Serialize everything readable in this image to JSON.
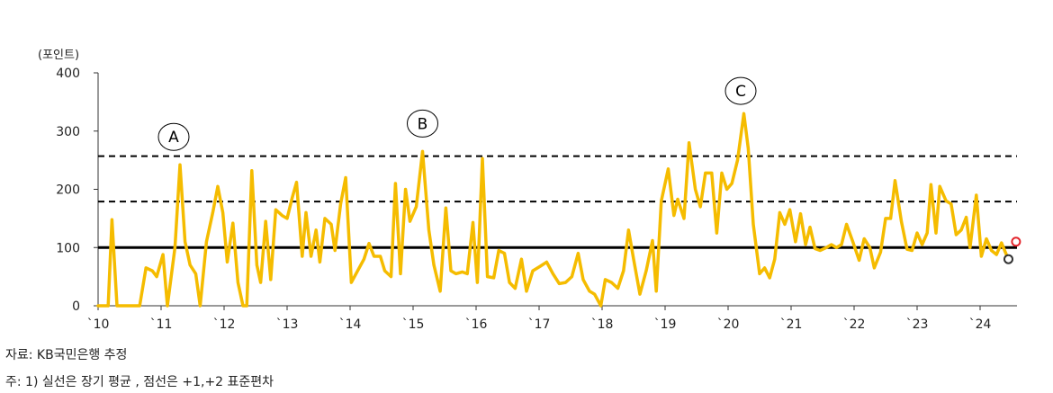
{
  "chart_data": {
    "type": "line",
    "unit": "(포인트)",
    "ylim": [
      0,
      400
    ],
    "yticks": [
      "0",
      "100",
      "200",
      "300",
      "400"
    ],
    "xlim": [
      2010.0,
      2024.3
    ],
    "xticks": [
      {
        "x": 2010,
        "label": "`10"
      },
      {
        "x": 2011,
        "label": "`11"
      },
      {
        "x": 2012,
        "label": "`12"
      },
      {
        "x": 2013,
        "label": "`13"
      },
      {
        "x": 2014,
        "label": "`14"
      },
      {
        "x": 2015,
        "label": "`15"
      },
      {
        "x": 2016,
        "label": "`16"
      },
      {
        "x": 2017,
        "label": "`17"
      },
      {
        "x": 2018,
        "label": "`18"
      },
      {
        "x": 2019,
        "label": "`19"
      },
      {
        "x": 2020,
        "label": "`20"
      },
      {
        "x": 2021,
        "label": "`21"
      },
      {
        "x": 2022,
        "label": "`22"
      },
      {
        "x": 2023,
        "label": "`23"
      },
      {
        "x": 2024,
        "label": "`24"
      }
    ],
    "grid": false,
    "series_color": "#F5BC00",
    "series": [
      {
        "values": [
          [
            2010.0,
            0
          ],
          [
            2010.08,
            0
          ],
          [
            2010.16,
            0
          ],
          [
            2010.22,
            148
          ],
          [
            2010.3,
            0
          ],
          [
            2010.4,
            0
          ],
          [
            2010.55,
            0
          ],
          [
            2010.66,
            0
          ],
          [
            2010.76,
            65
          ],
          [
            2010.86,
            60
          ],
          [
            2010.93,
            50
          ],
          [
            2011.03,
            88
          ],
          [
            2011.1,
            0
          ],
          [
            2011.22,
            100
          ],
          [
            2011.3,
            242
          ],
          [
            2011.38,
            110
          ],
          [
            2011.46,
            70
          ],
          [
            2011.55,
            55
          ],
          [
            2011.62,
            0
          ],
          [
            2011.72,
            110
          ],
          [
            2011.82,
            160
          ],
          [
            2011.9,
            205
          ],
          [
            2011.98,
            160
          ],
          [
            2012.05,
            75
          ],
          [
            2012.14,
            142
          ],
          [
            2012.22,
            40
          ],
          [
            2012.3,
            0
          ],
          [
            2012.36,
            0
          ],
          [
            2012.44,
            232
          ],
          [
            2012.52,
            70
          ],
          [
            2012.58,
            40
          ],
          [
            2012.66,
            145
          ],
          [
            2012.74,
            45
          ],
          [
            2012.82,
            165
          ],
          [
            2012.92,
            155
          ],
          [
            2013.0,
            150
          ],
          [
            2013.08,
            185
          ],
          [
            2013.15,
            212
          ],
          [
            2013.24,
            85
          ],
          [
            2013.3,
            160
          ],
          [
            2013.38,
            85
          ],
          [
            2013.46,
            130
          ],
          [
            2013.52,
            75
          ],
          [
            2013.6,
            150
          ],
          [
            2013.7,
            140
          ],
          [
            2013.76,
            95
          ],
          [
            2013.85,
            175
          ],
          [
            2013.93,
            220
          ],
          [
            2014.02,
            40
          ],
          [
            2014.12,
            60
          ],
          [
            2014.22,
            80
          ],
          [
            2014.3,
            107
          ],
          [
            2014.38,
            85
          ],
          [
            2014.48,
            85
          ],
          [
            2014.55,
            60
          ],
          [
            2014.65,
            50
          ],
          [
            2014.72,
            210
          ],
          [
            2014.8,
            55
          ],
          [
            2014.88,
            200
          ],
          [
            2014.95,
            145
          ],
          [
            2015.05,
            170
          ],
          [
            2015.15,
            265
          ],
          [
            2015.25,
            130
          ],
          [
            2015.33,
            70
          ],
          [
            2015.43,
            25
          ],
          [
            2015.52,
            168
          ],
          [
            2015.6,
            60
          ],
          [
            2015.68,
            55
          ],
          [
            2015.78,
            58
          ],
          [
            2015.86,
            55
          ],
          [
            2015.95,
            143
          ],
          [
            2016.02,
            40
          ],
          [
            2016.1,
            253
          ],
          [
            2016.18,
            50
          ],
          [
            2016.28,
            48
          ],
          [
            2016.36,
            95
          ],
          [
            2016.45,
            90
          ],
          [
            2016.53,
            40
          ],
          [
            2016.62,
            30
          ],
          [
            2016.72,
            80
          ],
          [
            2016.8,
            25
          ],
          [
            2016.9,
            60
          ],
          [
            2017.02,
            68
          ],
          [
            2017.12,
            75
          ],
          [
            2017.22,
            55
          ],
          [
            2017.32,
            38
          ],
          [
            2017.42,
            40
          ],
          [
            2017.52,
            50
          ],
          [
            2017.62,
            90
          ],
          [
            2017.7,
            45
          ],
          [
            2017.8,
            25
          ],
          [
            2017.88,
            20
          ],
          [
            2017.98,
            0
          ],
          [
            2018.05,
            45
          ],
          [
            2018.15,
            40
          ],
          [
            2018.25,
            30
          ],
          [
            2018.34,
            60
          ],
          [
            2018.42,
            130
          ],
          [
            2018.5,
            80
          ],
          [
            2018.6,
            20
          ],
          [
            2018.7,
            60
          ],
          [
            2018.8,
            112
          ],
          [
            2018.86,
            25
          ],
          [
            2018.94,
            180
          ],
          [
            2019.05,
            235
          ],
          [
            2019.14,
            155
          ],
          [
            2019.2,
            183
          ],
          [
            2019.3,
            150
          ],
          [
            2019.38,
            280
          ],
          [
            2019.48,
            200
          ],
          [
            2019.56,
            170
          ],
          [
            2019.64,
            228
          ],
          [
            2019.74,
            228
          ],
          [
            2019.82,
            125
          ],
          [
            2019.9,
            228
          ],
          [
            2019.98,
            200
          ],
          [
            2020.06,
            210
          ],
          [
            2020.15,
            250
          ],
          [
            2020.25,
            330
          ],
          [
            2020.32,
            270
          ],
          [
            2020.4,
            140
          ],
          [
            2020.5,
            55
          ],
          [
            2020.58,
            65
          ],
          [
            2020.66,
            48
          ],
          [
            2020.74,
            80
          ],
          [
            2020.82,
            160
          ],
          [
            2020.9,
            140
          ],
          [
            2020.98,
            165
          ],
          [
            2021.07,
            110
          ],
          [
            2021.15,
            158
          ],
          [
            2021.23,
            105
          ],
          [
            2021.3,
            135
          ],
          [
            2021.38,
            98
          ],
          [
            2021.46,
            95
          ],
          [
            2021.56,
            100
          ],
          [
            2021.64,
            105
          ],
          [
            2021.72,
            100
          ],
          [
            2021.8,
            105
          ],
          [
            2021.88,
            140
          ],
          [
            2021.98,
            110
          ],
          [
            2022.08,
            78
          ],
          [
            2022.16,
            115
          ],
          [
            2022.25,
            100
          ],
          [
            2022.32,
            65
          ],
          [
            2022.42,
            92
          ],
          [
            2022.5,
            150
          ],
          [
            2022.58,
            150
          ],
          [
            2022.65,
            215
          ],
          [
            2022.75,
            145
          ],
          [
            2022.84,
            97
          ],
          [
            2022.92,
            95
          ],
          [
            2023.0,
            125
          ],
          [
            2023.08,
            105
          ],
          [
            2023.16,
            125
          ],
          [
            2023.22,
            208
          ],
          [
            2023.3,
            125
          ],
          [
            2023.36,
            205
          ],
          [
            2023.46,
            180
          ],
          [
            2023.54,
            175
          ],
          [
            2023.62,
            122
          ],
          [
            2023.7,
            130
          ],
          [
            2023.78,
            152
          ],
          [
            2023.84,
            100
          ],
          [
            2023.94,
            190
          ],
          [
            2024.02,
            85
          ],
          [
            2024.1,
            115
          ],
          [
            2024.18,
            95
          ],
          [
            2024.26,
            88
          ],
          [
            2024.34,
            108
          ],
          [
            2024.42,
            87
          ]
        ]
      }
    ],
    "reference_lines": [
      {
        "value": 100,
        "style": "solid"
      },
      {
        "value": 179,
        "style": "dashed"
      },
      {
        "value": 257,
        "style": "dashed"
      }
    ],
    "annotations": [
      {
        "label": "A",
        "x": 2011.2,
        "y": 290
      },
      {
        "label": "B",
        "x": 2015.15,
        "y": 313
      },
      {
        "label": "C",
        "x": 2020.2,
        "y": 369
      }
    ],
    "end_markers": [
      {
        "x": 2024.57,
        "y": 110,
        "color": "#E3242B"
      },
      {
        "x": 2024.45,
        "y": 80,
        "color": "#333333"
      }
    ]
  },
  "notes": {
    "source": "자료: KB국민은행 추정",
    "footnote": "주: 1) 실선은 장기 평균 , 점선은 +1,+2 표준편차"
  }
}
